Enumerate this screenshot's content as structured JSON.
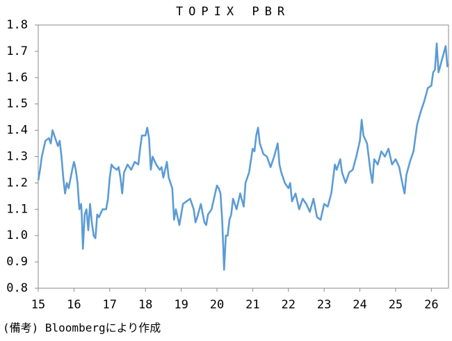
{
  "chart_data": {
    "type": "line",
    "title": "TOPIX PBR",
    "note": "(備考) Bloombergにより作成",
    "series": [
      {
        "color": "#5b9bd5",
        "x": [
          15.0,
          15.05,
          15.1,
          15.2,
          15.3,
          15.35,
          15.4,
          15.5,
          15.55,
          15.6,
          15.65,
          15.7,
          15.75,
          15.8,
          15.85,
          15.95,
          16.0,
          16.05,
          16.1,
          16.15,
          16.2,
          16.22,
          16.25,
          16.3,
          16.35,
          16.4,
          16.45,
          16.5,
          16.55,
          16.6,
          16.65,
          16.7,
          16.8,
          16.9,
          16.95,
          17.0,
          17.05,
          17.1,
          17.2,
          17.25,
          17.3,
          17.35,
          17.4,
          17.5,
          17.6,
          17.7,
          17.8,
          17.85,
          17.9,
          18.0,
          18.05,
          18.1,
          18.15,
          18.2,
          18.3,
          18.4,
          18.45,
          18.5,
          18.6,
          18.65,
          18.75,
          18.8,
          18.85,
          18.95,
          19.0,
          19.05,
          19.15,
          19.25,
          19.3,
          19.35,
          19.4,
          19.45,
          19.55,
          19.65,
          19.7,
          19.75,
          19.85,
          19.9,
          20.0,
          20.05,
          20.1,
          20.15,
          20.2,
          20.25,
          20.3,
          20.35,
          20.4,
          20.45,
          20.55,
          20.65,
          20.75,
          20.8,
          20.9,
          21.0,
          21.05,
          21.1,
          21.15,
          21.2,
          21.3,
          21.4,
          21.5,
          21.6,
          21.7,
          21.75,
          21.8,
          21.9,
          22.0,
          22.05,
          22.1,
          22.2,
          22.3,
          22.4,
          22.5,
          22.6,
          22.7,
          22.8,
          22.9,
          23.0,
          23.1,
          23.2,
          23.3,
          23.35,
          23.45,
          23.5,
          23.6,
          23.7,
          23.8,
          23.9,
          24.0,
          24.05,
          24.1,
          24.2,
          24.3,
          24.35,
          24.4,
          24.5,
          24.6,
          24.7,
          24.8,
          24.9,
          25.0,
          25.1,
          25.2,
          25.25,
          25.3,
          25.4,
          25.5,
          25.6,
          25.7,
          25.8,
          25.9,
          26.0,
          26.05,
          26.1,
          26.15,
          26.2,
          26.3,
          26.4,
          26.45
        ],
        "values": [
          1.21,
          1.25,
          1.3,
          1.36,
          1.37,
          1.35,
          1.4,
          1.36,
          1.34,
          1.36,
          1.3,
          1.22,
          1.16,
          1.2,
          1.18,
          1.25,
          1.28,
          1.25,
          1.2,
          1.1,
          1.12,
          1.07,
          0.95,
          1.08,
          1.1,
          1.02,
          1.12,
          1.05,
          1.0,
          0.99,
          1.08,
          1.07,
          1.1,
          1.1,
          1.14,
          1.22,
          1.27,
          1.26,
          1.25,
          1.26,
          1.22,
          1.16,
          1.24,
          1.27,
          1.25,
          1.28,
          1.27,
          1.33,
          1.38,
          1.38,
          1.41,
          1.37,
          1.25,
          1.3,
          1.27,
          1.25,
          1.26,
          1.22,
          1.28,
          1.22,
          1.18,
          1.06,
          1.1,
          1.04,
          1.08,
          1.12,
          1.13,
          1.14,
          1.12,
          1.1,
          1.05,
          1.07,
          1.12,
          1.05,
          1.04,
          1.08,
          1.1,
          1.13,
          1.19,
          1.18,
          1.16,
          1.05,
          0.87,
          1.0,
          1.0,
          1.06,
          1.08,
          1.14,
          1.1,
          1.16,
          1.11,
          1.2,
          1.24,
          1.33,
          1.32,
          1.38,
          1.41,
          1.35,
          1.31,
          1.3,
          1.26,
          1.3,
          1.35,
          1.27,
          1.24,
          1.2,
          1.18,
          1.2,
          1.13,
          1.16,
          1.1,
          1.14,
          1.12,
          1.09,
          1.14,
          1.07,
          1.06,
          1.12,
          1.11,
          1.16,
          1.27,
          1.25,
          1.29,
          1.24,
          1.2,
          1.24,
          1.25,
          1.3,
          1.36,
          1.44,
          1.38,
          1.35,
          1.24,
          1.2,
          1.29,
          1.27,
          1.32,
          1.3,
          1.33,
          1.27,
          1.29,
          1.26,
          1.19,
          1.16,
          1.23,
          1.28,
          1.32,
          1.42,
          1.47,
          1.51,
          1.56,
          1.57,
          1.62,
          1.63,
          1.73,
          1.62,
          1.67,
          1.72,
          1.64
        ]
      }
    ],
    "xlim": [
      15,
      26.48
    ],
    "xticks": [
      15,
      16,
      17,
      18,
      19,
      20,
      21,
      22,
      23,
      24,
      25,
      26
    ],
    "ylim": [
      0.8,
      1.8
    ],
    "yticks": [
      0.8,
      0.9,
      {
        "value": 1,
        "label": "1.0"
      },
      1.1,
      1.2,
      1.3,
      1.4,
      1.5,
      1.6,
      1.7,
      1.8
    ]
  }
}
